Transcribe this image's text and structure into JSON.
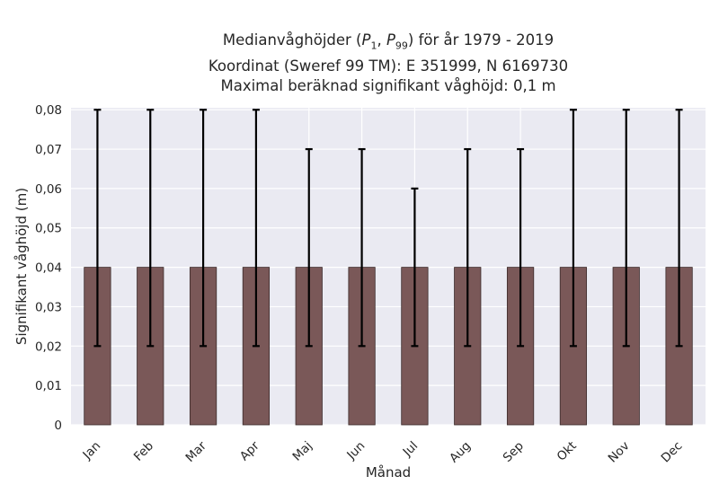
{
  "chart_data": {
    "type": "bar",
    "title_lines": [
      "Medianvåghöjder (P",
      "Koordinat (Sweref 99 TM): E 351999, N 6169730",
      "Maximal beräknad signifikant våghöjd: 0,1 m"
    ],
    "title_math": {
      "prefix": "Medianvåghöjder (",
      "p1_sub": "1",
      "p99_sub": "99",
      "suffix": ") för år 1979 - 2019"
    },
    "xlabel": "Månad",
    "ylabel": "Signifikant våghöjd (m)",
    "categories": [
      "Jan",
      "Feb",
      "Mar",
      "Apr",
      "Maj",
      "Jun",
      "Jul",
      "Aug",
      "Sep",
      "Okt",
      "Nov",
      "Dec"
    ],
    "values": [
      0.04,
      0.04,
      0.04,
      0.04,
      0.04,
      0.04,
      0.04,
      0.04,
      0.04,
      0.04,
      0.04,
      0.04
    ],
    "error_low": [
      0.02,
      0.02,
      0.02,
      0.02,
      0.02,
      0.02,
      0.02,
      0.02,
      0.02,
      0.02,
      0.02,
      0.02
    ],
    "error_high": [
      0.08,
      0.08,
      0.08,
      0.08,
      0.07,
      0.07,
      0.06,
      0.07,
      0.07,
      0.08,
      0.08,
      0.08
    ],
    "ylim": [
      0,
      0.0805
    ],
    "yticks": [
      0,
      0.01,
      0.02,
      0.03,
      0.04,
      0.05,
      0.06,
      0.07,
      0.08
    ],
    "ytick_labels": [
      "0",
      "0,01",
      "0,02",
      "0,03",
      "0,04",
      "0,05",
      "0,06",
      "0,07",
      "0,08"
    ],
    "grid": true,
    "colors": {
      "bar": "#7a5858",
      "bar_edge": "#3b2a2a",
      "error": "#000000",
      "plot_bg": "#eaeaf2",
      "grid": "#ffffff"
    }
  }
}
